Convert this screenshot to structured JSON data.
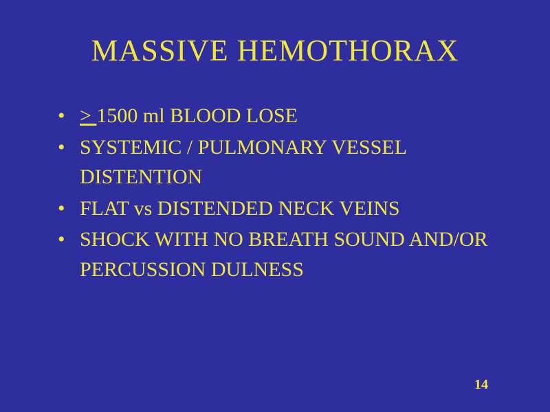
{
  "slide": {
    "background_color": "#2e2e9e",
    "text_color": "#f3e63a",
    "font_family": "Times New Roman",
    "title": {
      "text": "MASSIVE HEMOTHORAX",
      "font_size": 44,
      "align": "center"
    },
    "bullets": [
      {
        "prefix": "> ",
        "prefix_underline": true,
        "text": "1500 ml BLOOD LOSE"
      },
      {
        "prefix": "",
        "prefix_underline": false,
        "text": "SYSTEMIC / PULMONARY VESSEL DISTENTION"
      },
      {
        "prefix": "",
        "prefix_underline": false,
        "text": "FLAT vs DISTENDED NECK VEINS"
      },
      {
        "prefix": "",
        "prefix_underline": false,
        "text": "SHOCK WITH NO BREATH SOUND AND/OR PERCUSSION DULNESS"
      }
    ],
    "bullet_font_size": 30,
    "page_number": "14",
    "page_number_font_size": 20
  }
}
